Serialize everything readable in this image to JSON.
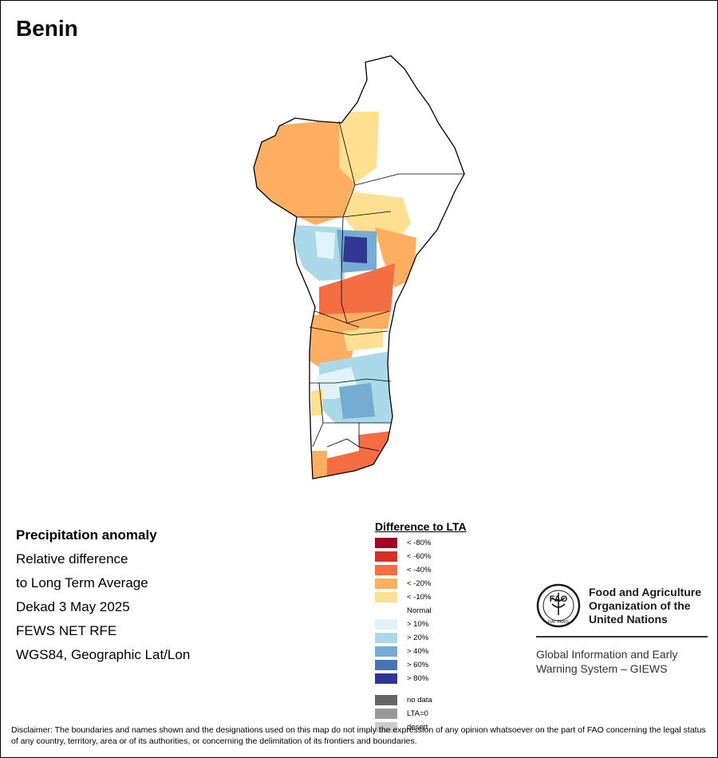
{
  "map": {
    "title": "Benin",
    "info_lines": [
      "Precipitation anomaly",
      "Relative difference",
      "to Long Term Average",
      "Dekad 3 May 2025",
      "FEWS NET RFE",
      "WGS84, Geographic Lat/Lon"
    ]
  },
  "legend": {
    "title": "Difference to LTA",
    "items": [
      {
        "label": "< -80%",
        "color": "#a50026"
      },
      {
        "label": "< -60%",
        "color": "#d73027"
      },
      {
        "label": "< -40%",
        "color": "#f46d43"
      },
      {
        "label": "< -20%",
        "color": "#fdae61"
      },
      {
        "label": "< -10%",
        "color": "#fee090"
      }
    ],
    "normal_label": "Normal",
    "wet_items": [
      {
        "label": "> 10%",
        "color": "#e0f3f8"
      },
      {
        "label": "> 20%",
        "color": "#abd9e9"
      },
      {
        "label": "> 40%",
        "color": "#74add1"
      },
      {
        "label": "> 60%",
        "color": "#4575b4"
      },
      {
        "label": "> 80%",
        "color": "#313695"
      }
    ],
    "extra_items": [
      {
        "label": "no data",
        "color": "#666666"
      },
      {
        "label": "LTA=0",
        "color": "#999999"
      },
      {
        "label": "desert",
        "color": "#cccccc"
      }
    ]
  },
  "branding": {
    "logo_text": "FAO",
    "logo_motto": "FIAT PANIS",
    "org_lines": [
      "Food and Agriculture",
      "Organization of the",
      "United Nations"
    ],
    "system_lines": [
      "Global Information and Early",
      "Warning System – GIEWS"
    ]
  },
  "disclaimer": "Disclaimer: The boundaries and names shown and the designations used on this map do not imply the expression of any opinion whatsoever on the part of FAO concerning the legal status of any country, territory, area or of its authorities, or concerning the delimitation of its frontiers and boundaries."
}
